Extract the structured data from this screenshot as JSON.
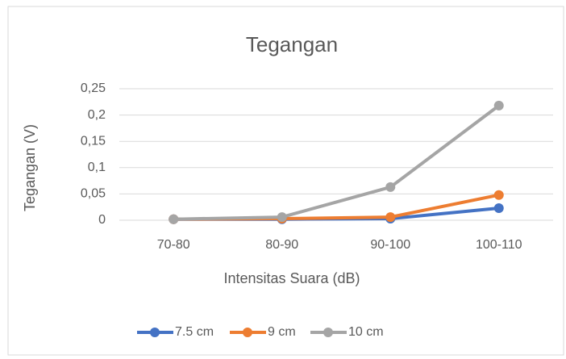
{
  "chart_data": {
    "type": "line",
    "title": "Tegangan",
    "xlabel": "Intensitas Suara (dB)",
    "ylabel": "Tegangan (V)",
    "categories": [
      "70-80",
      "80-90",
      "90-100",
      "100-110"
    ],
    "series": [
      {
        "name": "7.5 cm",
        "color": "#4472c4",
        "values": [
          0.002,
          0.002,
          0.003,
          0.023
        ]
      },
      {
        "name": "9 cm",
        "color": "#ed7d31",
        "values": [
          0.002,
          0.003,
          0.006,
          0.048
        ]
      },
      {
        "name": "10 cm",
        "color": "#a5a5a5",
        "values": [
          0.002,
          0.006,
          0.063,
          0.218
        ]
      }
    ],
    "ylim": [
      0,
      0.25
    ],
    "yticks": [
      0,
      {
        "value": 0.05,
        "label": "0,05"
      },
      {
        "value": 0.1,
        "label": "0,1"
      },
      {
        "value": 0.15,
        "label": "0,15"
      },
      {
        "value": 0.2,
        "label": "0,2"
      },
      {
        "value": 0.25,
        "label": "0,25"
      }
    ],
    "grid": true,
    "legend": "bottom"
  }
}
